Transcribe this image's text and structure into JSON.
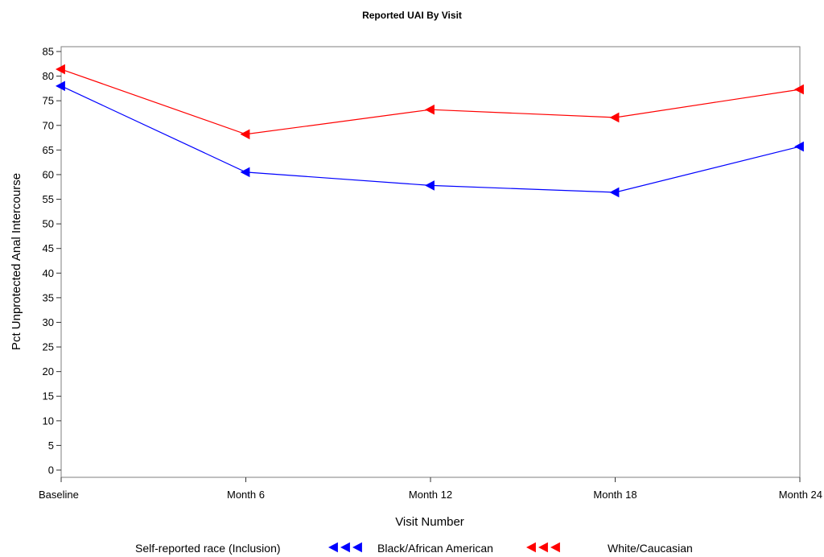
{
  "chart_data": {
    "type": "line",
    "title": "Reported UAI By Visit",
    "xlabel": "Visit Number",
    "ylabel": "Pct Unprotected Anal Intercourse",
    "categories": [
      "Baseline",
      "Month 6",
      "Month 12",
      "Month 18",
      "Month 24"
    ],
    "ylim": [
      0,
      85
    ],
    "yticks": [
      0,
      5,
      10,
      15,
      20,
      25,
      30,
      35,
      40,
      45,
      50,
      55,
      60,
      65,
      70,
      75,
      80,
      85
    ],
    "grid": false,
    "legend": {
      "title": "Self-reported race (Inclusion)",
      "placement": "bottom"
    },
    "series": [
      {
        "name": "Black/African American",
        "color": "#0000ff",
        "marker": "left-triangle",
        "values": [
          78.0,
          60.5,
          57.8,
          56.4,
          65.7
        ]
      },
      {
        "name": "White/Caucasian",
        "color": "#ff0000",
        "marker": "left-triangle",
        "values": [
          81.4,
          68.2,
          73.2,
          71.6,
          77.3
        ]
      }
    ]
  }
}
